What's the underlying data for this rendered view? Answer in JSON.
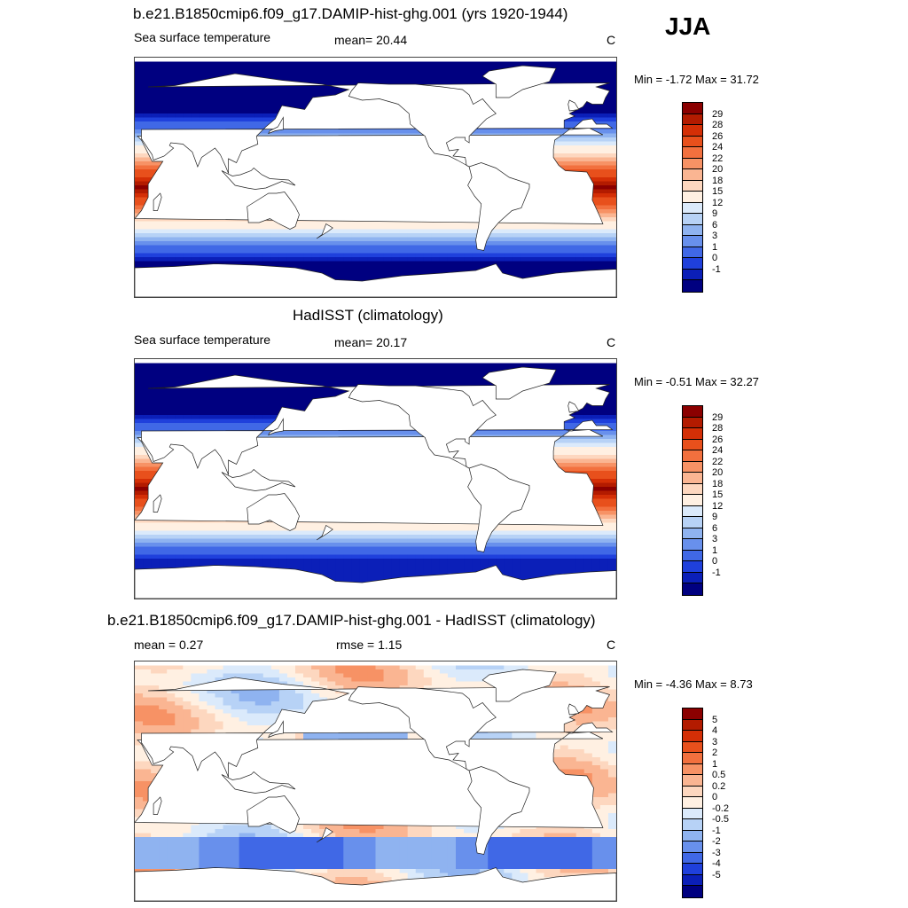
{
  "season": "JJA",
  "panels": [
    {
      "title": "b.e21.B1850cmip6.f09_g17.DAMIP-hist-ghg.001 (yrs 1920-1944)",
      "left_label": "Sea surface temperature",
      "mid_label": "mean=  20.44",
      "unit": "C",
      "minmax": "Min =  -1.72 Max =  31.72",
      "field": "sst_model"
    },
    {
      "title": "HadISST (climatology)",
      "left_label": "Sea surface temperature",
      "mid_label": "mean=  20.17",
      "unit": "C",
      "minmax": "Min =  -0.51 Max =  32.27",
      "field": "sst_obs"
    },
    {
      "title": "b.e21.B1850cmip6.f09_g17.DAMIP-hist-ghg.001 - HadISST (climatology)",
      "left_label": "mean =   0.27",
      "mid_label": "rmse =   1.15",
      "unit": "C",
      "minmax": "Min =  -4.36 Max =   8.73",
      "field": "diff"
    }
  ],
  "colorbars": {
    "sst": {
      "labels": [
        "29",
        "28",
        "26",
        "24",
        "22",
        "20",
        "18",
        "15",
        "12",
        "9",
        "6",
        "3",
        "1",
        "0",
        "-1"
      ],
      "colors": [
        "#8b0000",
        "#b31b00",
        "#d42f06",
        "#e8501c",
        "#f2703e",
        "#f79265",
        "#fab592",
        "#fdd7bf",
        "#fff0e2",
        "#dbeafb",
        "#b7d2f6",
        "#8fb3f0",
        "#6890ec",
        "#4068e6",
        "#1f40dc",
        "#0b1fb8",
        "#000080"
      ]
    },
    "diff": {
      "labels": [
        "5",
        "4",
        "3",
        "2",
        "1",
        "0.5",
        "0.2",
        "0",
        "-0.2",
        "-0.5",
        "-1",
        "-2",
        "-3",
        "-4",
        "-5"
      ],
      "colors": [
        "#8b0000",
        "#b31b00",
        "#d42f06",
        "#e8501c",
        "#f2703e",
        "#f79265",
        "#fab592",
        "#fdd7bf",
        "#fff0e2",
        "#dbeafb",
        "#b7d2f6",
        "#8fb3f0",
        "#6890ec",
        "#4068e6",
        "#1f40dc",
        "#0b1fb8",
        "#000080"
      ]
    }
  }
}
